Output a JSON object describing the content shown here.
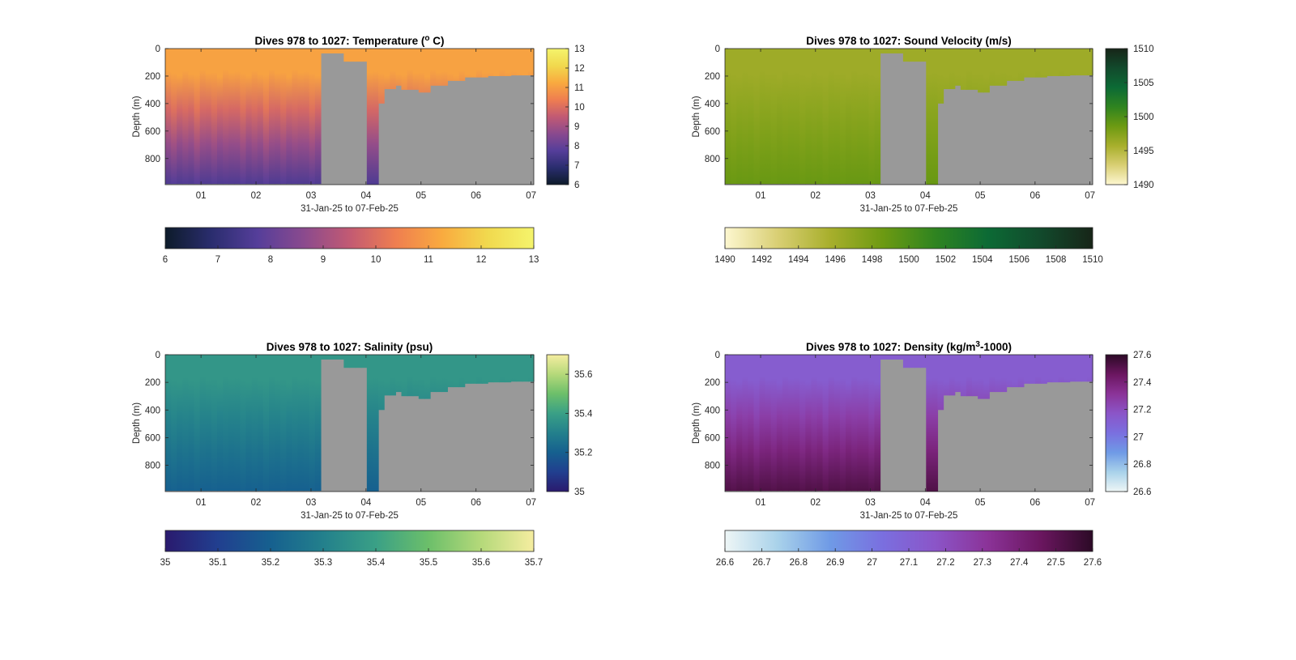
{
  "chart_data": [
    {
      "type": "heatmap",
      "variable": "temperature",
      "title": "Dives 978 to 1027: Temperature (",
      "title_sup": "o",
      "title_end": " C)",
      "xlabel": "31-Jan-25 to 07-Feb-25",
      "ylabel": "Depth (m)",
      "xticks": [
        "01",
        "02",
        "03",
        "04",
        "05",
        "06",
        "07"
      ],
      "yticks": [
        "0",
        "200",
        "400",
        "600",
        "800"
      ],
      "ylim": [
        0,
        990
      ],
      "xlim": [
        0.35,
        7.05
      ],
      "colormap": [
        "#0d1b2a",
        "#2a2d6e",
        "#553e9a",
        "#8a4a8e",
        "#c25a73",
        "#ef7e50",
        "#f9aa3f",
        "#f1d94e",
        "#f4f46c"
      ],
      "clim": [
        6,
        13
      ],
      "right_colorbar_ticks": [
        "6",
        "7",
        "8",
        "9",
        "10",
        "11",
        "12",
        "13"
      ],
      "bottom_colorbar_ticks": [
        "6",
        "7",
        "8",
        "9",
        "10",
        "11",
        "12",
        "13"
      ],
      "surface_value": 11.1,
      "deep_value": 7.6,
      "color_gap": "#999999"
    },
    {
      "type": "heatmap",
      "variable": "sound_velocity",
      "title": "Dives 978 to 1027: Sound Velocity (m/s)",
      "title_sup": "",
      "title_end": "",
      "xlabel": "31-Jan-25 to 07-Feb-25",
      "ylabel": "Depth (m)",
      "xticks": [
        "01",
        "02",
        "03",
        "04",
        "05",
        "06",
        "07"
      ],
      "yticks": [
        "0",
        "200",
        "400",
        "600",
        "800"
      ],
      "ylim": [
        0,
        990
      ],
      "xlim": [
        0.35,
        7.05
      ],
      "colormap": [
        "#fdf7d0",
        "#d9cf74",
        "#a8af2c",
        "#6d9a12",
        "#2f8420",
        "#0c6a35",
        "#124a2c",
        "#172518"
      ],
      "clim": [
        1490,
        1510
      ],
      "right_colorbar_ticks": [
        "1490",
        "1495",
        "1500",
        "1505",
        "1510"
      ],
      "bottom_colorbar_ticks": [
        "1490",
        "1492",
        "1494",
        "1496",
        "1498",
        "1500",
        "1502",
        "1504",
        "1506",
        "1508",
        "1510"
      ],
      "surface_value": 1496.2,
      "deep_value": 1498.8,
      "color_gap": "#999999"
    },
    {
      "type": "heatmap",
      "variable": "salinity",
      "title": "Dives 978 to 1027: Salinity (psu)",
      "title_sup": "",
      "title_end": "",
      "xlabel": "31-Jan-25 to 07-Feb-25",
      "ylabel": "Depth (m)",
      "xticks": [
        "01",
        "02",
        "03",
        "04",
        "05",
        "06",
        "07"
      ],
      "yticks": [
        "0",
        "200",
        "400",
        "600",
        "800"
      ],
      "ylim": [
        0,
        990
      ],
      "xlim": [
        0.35,
        7.05
      ],
      "colormap": [
        "#2a1a6e",
        "#213f8f",
        "#16608f",
        "#23808c",
        "#3aa086",
        "#6cbf6a",
        "#b5d97a",
        "#f5eda0"
      ],
      "clim": [
        35.0,
        35.7
      ],
      "right_colorbar_ticks": [
        "35",
        "35.2",
        "35.4",
        "35.6"
      ],
      "bottom_colorbar_ticks": [
        "35",
        "35.1",
        "35.2",
        "35.3",
        "35.4",
        "35.5",
        "35.6",
        "35.7"
      ],
      "surface_value": 35.37,
      "deep_value": 35.2,
      "color_gap": "#999999"
    },
    {
      "type": "heatmap",
      "variable": "density",
      "title": "Dives 978 to 1027: Density (kg/m",
      "title_sup": "3",
      "title_end": "-1000)",
      "xlabel": "31-Jan-25 to 07-Feb-25",
      "ylabel": "Depth (m)",
      "xticks": [
        "01",
        "02",
        "03",
        "04",
        "05",
        "06",
        "07"
      ],
      "yticks": [
        "0",
        "200",
        "400",
        "600",
        "800"
      ],
      "ylim": [
        0,
        990
      ],
      "xlim": [
        0.35,
        7.05
      ],
      "colormap": [
        "#eef6f6",
        "#a9d2ea",
        "#6f9ae6",
        "#7a6fdf",
        "#8b55c8",
        "#8b3398",
        "#6b1660",
        "#2c0a26"
      ],
      "clim": [
        26.6,
        27.6
      ],
      "right_colorbar_ticks": [
        "26.6",
        "26.8",
        "27",
        "27.2",
        "27.4",
        "27.6"
      ],
      "bottom_colorbar_ticks": [
        "26.6",
        "26.7",
        "26.8",
        "26.9",
        "27",
        "27.1",
        "27.2",
        "27.3",
        "27.4",
        "27.5",
        "27.6"
      ],
      "surface_value": 27.13,
      "deep_value": 27.52,
      "color_gap": "#999999"
    }
  ]
}
